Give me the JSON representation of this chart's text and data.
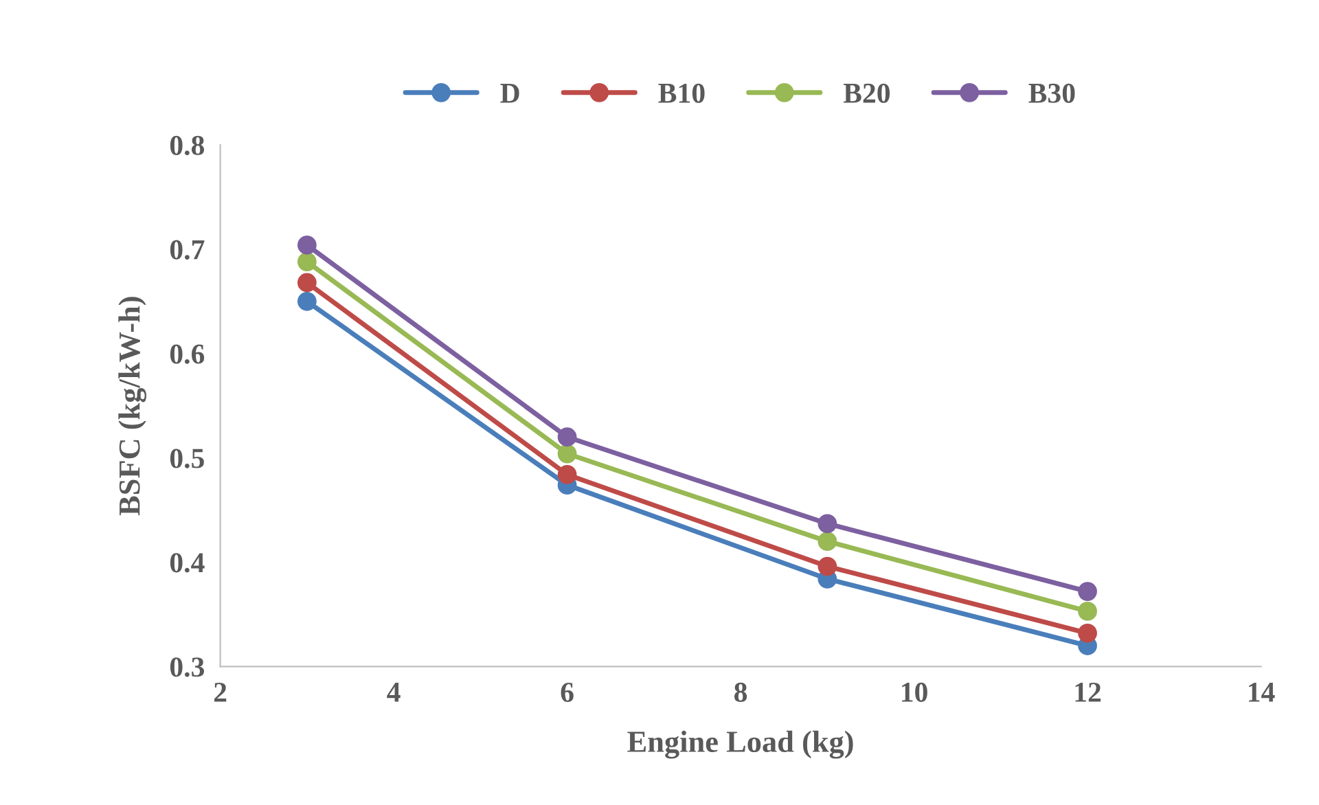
{
  "chart_data": {
    "type": "line",
    "xlabel": "Engine Load (kg)",
    "ylabel": "BSFC (kg/kW-h)",
    "x": [
      3,
      6,
      9,
      12
    ],
    "series": [
      {
        "name": "D",
        "color": "#4a7ebb",
        "values": [
          0.65,
          0.474,
          0.384,
          0.32
        ]
      },
      {
        "name": "B10",
        "color": "#be4b48",
        "values": [
          0.668,
          0.484,
          0.396,
          0.332
        ]
      },
      {
        "name": "B20",
        "color": "#98b954",
        "values": [
          0.688,
          0.504,
          0.42,
          0.353
        ]
      },
      {
        "name": "B30",
        "color": "#7d60a0",
        "values": [
          0.704,
          0.52,
          0.437,
          0.372
        ]
      }
    ],
    "xlim": [
      2,
      14
    ],
    "xticks": [
      2,
      4,
      6,
      8,
      10,
      12,
      14
    ],
    "ylim": [
      0.3,
      0.8
    ],
    "yticks": [
      0.3,
      0.4,
      0.5,
      0.6,
      0.7,
      0.8
    ],
    "grid": false,
    "legend": "top",
    "marker": "circle",
    "line_style": "solid"
  }
}
